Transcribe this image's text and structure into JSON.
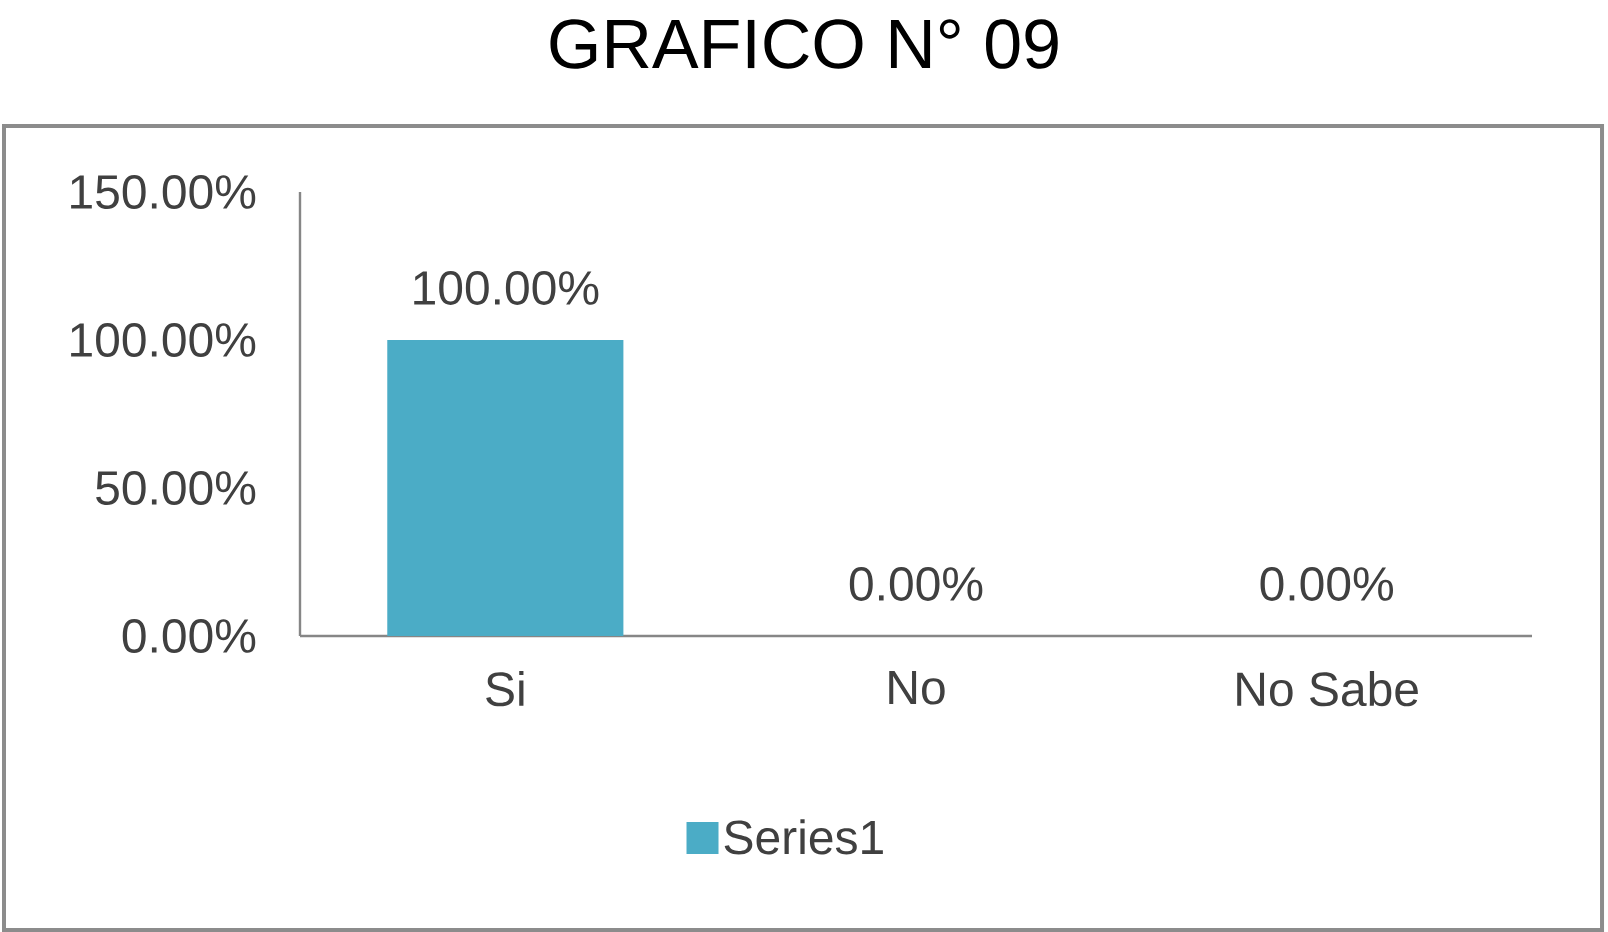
{
  "chart_data": {
    "type": "bar",
    "title": "GRAFICO N° 09",
    "categories": [
      "Si",
      "No",
      "No Sabe"
    ],
    "series": [
      {
        "name": "Series1",
        "color": "#4bacc6",
        "values": [
          100,
          0,
          0
        ],
        "value_labels": [
          "100.00%",
          "0.00%",
          "0.00%"
        ]
      }
    ],
    "ylim": [
      0,
      150
    ],
    "yticks": [
      {
        "value": 0,
        "label": "0.00%"
      },
      {
        "value": 50,
        "label": "50.00%"
      },
      {
        "value": 100,
        "label": "100.00%"
      },
      {
        "value": 150,
        "label": "150.00%"
      }
    ],
    "legend": "bottom"
  }
}
